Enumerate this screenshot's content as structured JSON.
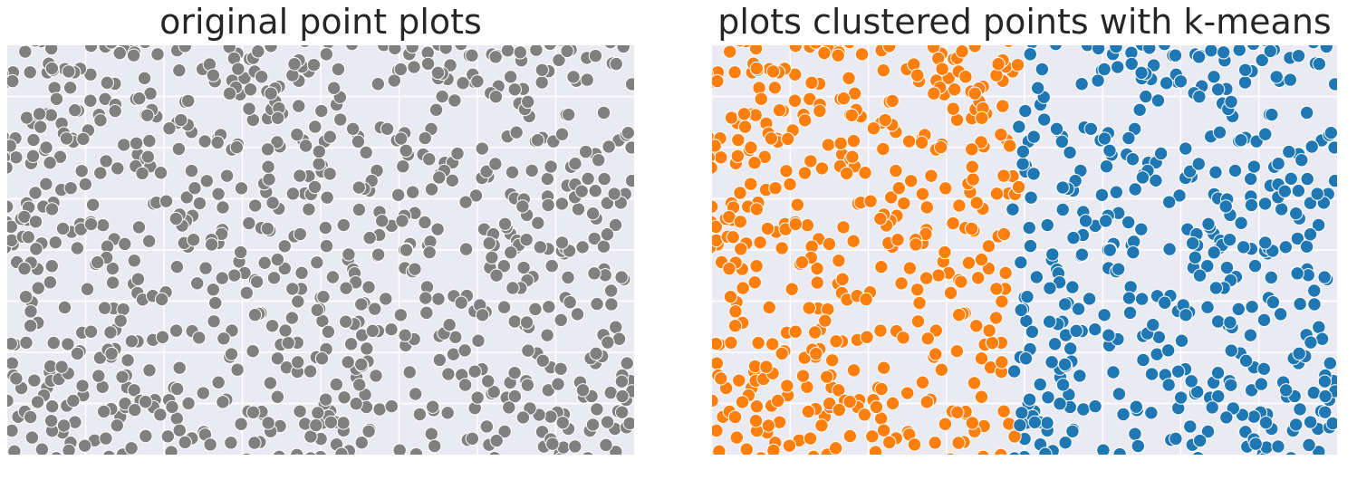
{
  "figure": {
    "background": "#ffffff",
    "plot_background": "#eaeaf2",
    "grid_color": "#ffffff",
    "marker_edge_color": "#ffffff"
  },
  "chart_data": [
    {
      "type": "scatter",
      "title": "original point plots",
      "xlabel": "",
      "ylabel": "",
      "xlim": [
        0.0,
        1.0
      ],
      "ylim": [
        0.0,
        1.0
      ],
      "grid": true,
      "ticks_visible": false,
      "legend": "none",
      "point_count": 900,
      "colors": {
        "points": "#808080"
      },
      "series": [
        {
          "color": "#808080"
        }
      ]
    },
    {
      "type": "scatter",
      "title": "plots clustered points with k-means",
      "xlabel": "",
      "ylabel": "",
      "xlim": [
        0.0,
        1.0
      ],
      "ylim": [
        0.0,
        1.0
      ],
      "grid": true,
      "ticks_visible": false,
      "legend": "none",
      "point_count": 900,
      "clustering": "k-means",
      "k": 2,
      "cluster_boundary_x_approx": 0.48,
      "colors": {
        "cluster_0": "#ff7f0e",
        "cluster_1": "#1f77b4"
      },
      "series": [
        {
          "cluster": 0,
          "color": "#ff7f0e",
          "x_range": [
            0.0,
            0.48
          ],
          "approx_count": 430
        },
        {
          "cluster": 1,
          "color": "#1f77b4",
          "x_range": [
            0.48,
            1.0
          ],
          "approx_count": 470
        }
      ]
    }
  ]
}
